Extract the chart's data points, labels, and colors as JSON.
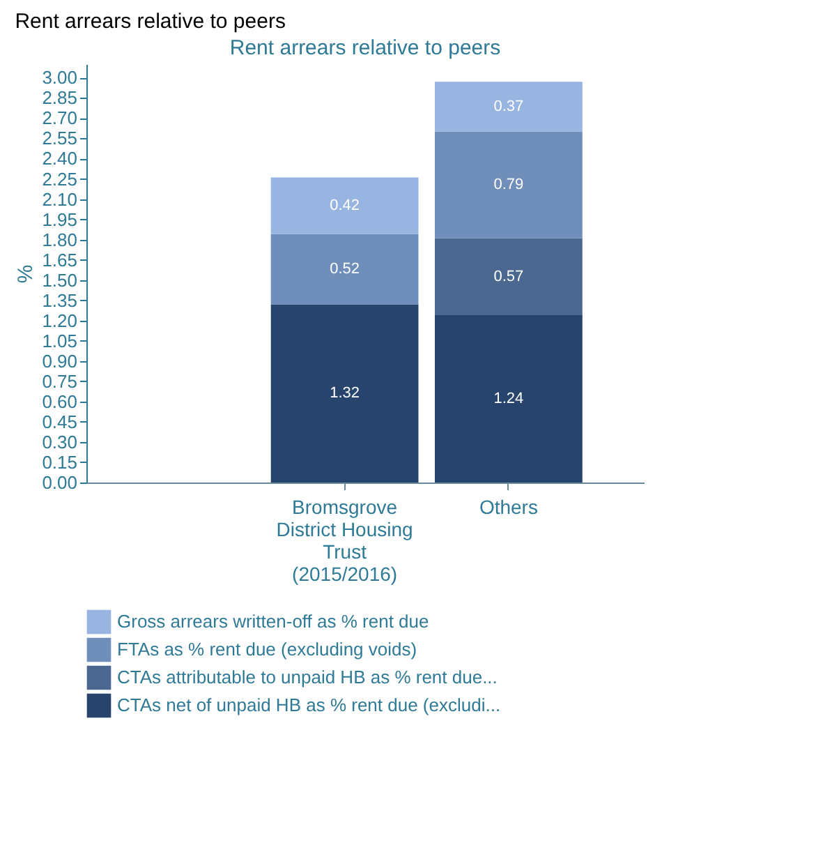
{
  "chart_data": {
    "type": "bar",
    "title": "Rent arrears relative to peers",
    "subtitle": "Rent arrears relative to peers",
    "ylabel": "%",
    "categories": [
      "Bromsgrove District Housing Trust (2015/2016)",
      "Others"
    ],
    "stacked": true,
    "data_labels": true,
    "grid": false,
    "legend": "bottom left",
    "ylim": [
      0,
      3.1
    ],
    "yticks": [
      {
        "value": 0,
        "label": "0.00"
      },
      {
        "value": 0.15,
        "label": "0.15"
      },
      {
        "value": 0.3,
        "label": "0.30"
      },
      {
        "value": 0.45,
        "label": "0.45"
      },
      {
        "value": 0.6,
        "label": "0.60"
      },
      {
        "value": 0.75,
        "label": "0.75"
      },
      {
        "value": 0.9,
        "label": "0.90"
      },
      {
        "value": 1.05,
        "label": "1.05"
      },
      {
        "value": 1.2,
        "label": "1.20"
      },
      {
        "value": 1.35,
        "label": "1.35"
      },
      {
        "value": 1.5,
        "label": "1.50"
      },
      {
        "value": 1.65,
        "label": "1.65"
      },
      {
        "value": 1.8,
        "label": "1.80"
      },
      {
        "value": 1.95,
        "label": "1.95"
      },
      {
        "value": 2.1,
        "label": "2.10"
      },
      {
        "value": 2.25,
        "label": "2.25"
      },
      {
        "value": 2.4,
        "label": "2.40"
      },
      {
        "value": 2.55,
        "label": "2.55"
      },
      {
        "value": 2.7,
        "label": "2.70"
      },
      {
        "value": 2.85,
        "label": "2.85"
      },
      {
        "value": 3.0,
        "label": "3.00"
      }
    ],
    "series": [
      {
        "name": "CTAs net of unpaid HB as % rent due (excludi...",
        "color": "#26446c",
        "values": [
          1.32,
          1.24
        ]
      },
      {
        "name": "CTAs attributable to unpaid HB as % rent due...",
        "color": "#4b6891",
        "values": [
          null,
          0.57
        ]
      },
      {
        "name": "FTAs as % rent due (excluding voids)",
        "color": "#6f8fba",
        "values": [
          0.52,
          0.79
        ]
      },
      {
        "name": "Gross arrears written-off as % rent due",
        "color": "#98b4e0",
        "values": [
          0.42,
          0.37
        ]
      }
    ]
  }
}
